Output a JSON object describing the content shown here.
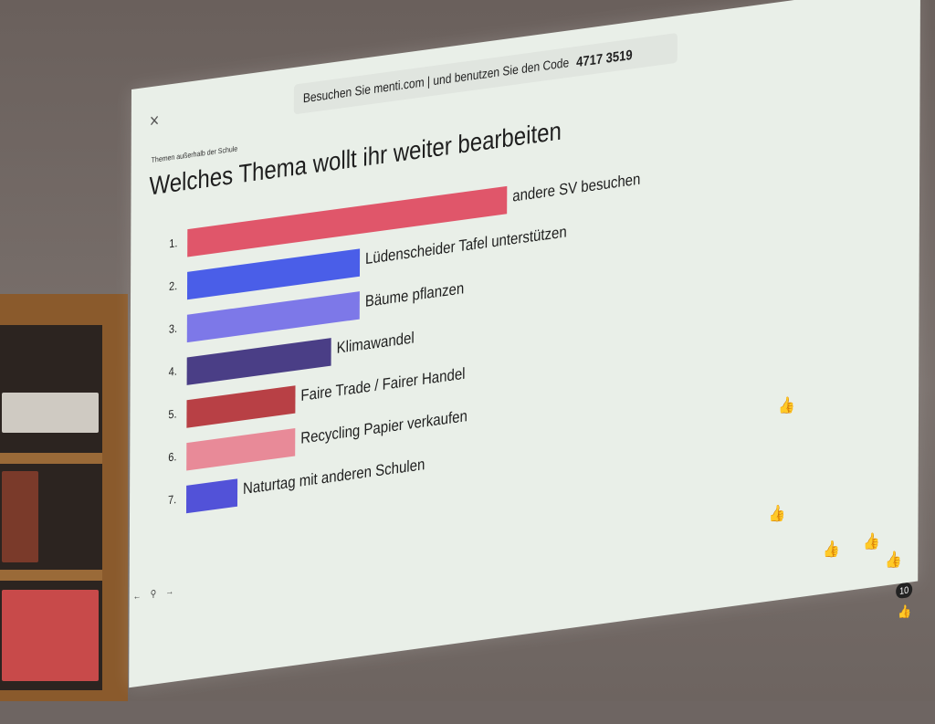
{
  "top_bar": {
    "instruction": "Besuchen Sie menti.com | und benutzen Sie den Code",
    "code": "4717 3519"
  },
  "slide": {
    "subtitle": "Themen außerhalb der Schule",
    "title": "Welches Thema wollt ihr weiter bearbeiten"
  },
  "results": [
    {
      "rank": "1.",
      "label": "andere SV besuchen",
      "share": 1.0,
      "color": "#e0566a"
    },
    {
      "rank": "2.",
      "label": "Lüdenscheider Tafel unterstützen",
      "share": 0.54,
      "color": "#4a5ee8"
    },
    {
      "rank": "3.",
      "label": "Bäume pflanzen",
      "share": 0.54,
      "color": "#7d78e8"
    },
    {
      "rank": "4.",
      "label": "Klimawandel",
      "share": 0.45,
      "color": "#4a3e86"
    },
    {
      "rank": "5.",
      "label": "Faire Trade / Fairer Handel",
      "share": 0.34,
      "color": "#b84045"
    },
    {
      "rank": "6.",
      "label": "Recycling Papier verkaufen",
      "share": 0.34,
      "color": "#e88a98"
    },
    {
      "rank": "7.",
      "label": "Naturtag mit anderen Schulen",
      "share": 0.16,
      "color": "#5252d8"
    }
  ],
  "reactions": {
    "count": "10",
    "icon": "thumbs-up-icon"
  },
  "nav": {
    "prev": "←",
    "location": "⚲",
    "next": "→"
  },
  "close_glyph": "×"
}
